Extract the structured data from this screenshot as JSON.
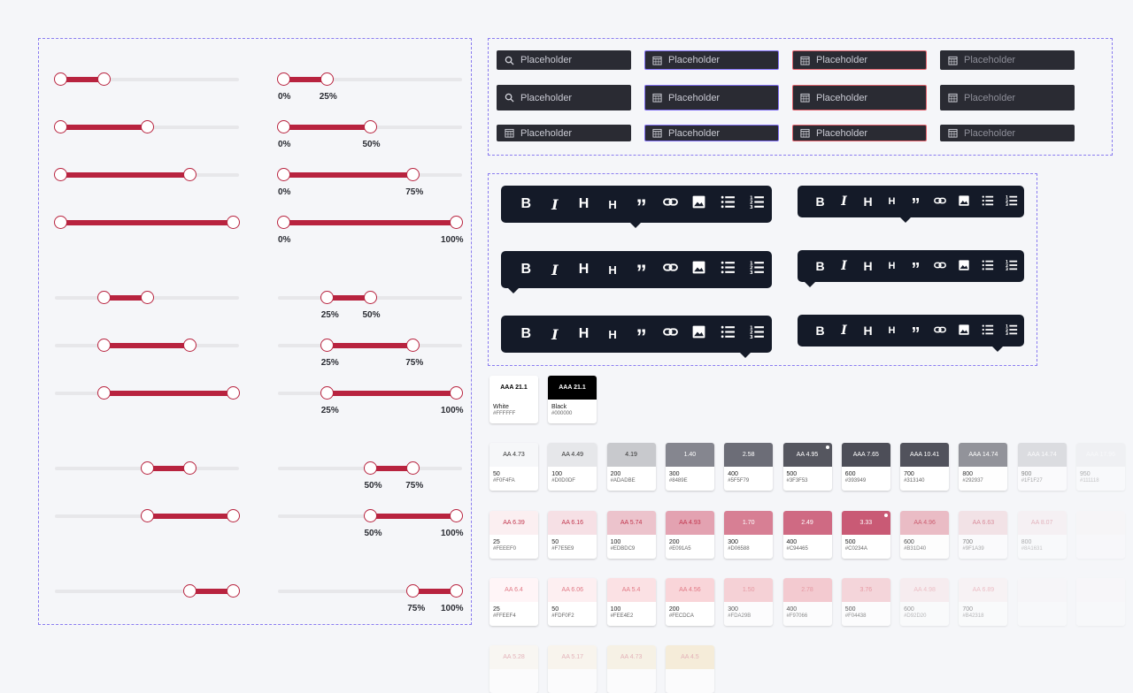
{
  "sliders": {
    "left_rows": [
      {
        "low": 0,
        "high": 25
      },
      {
        "low": 0,
        "high": 50
      },
      {
        "low": 0,
        "high": 75
      },
      {
        "low": 0,
        "high": 100
      },
      {
        "low": 25,
        "high": 50
      },
      {
        "low": 25,
        "high": 75
      },
      {
        "low": 25,
        "high": 100
      },
      {
        "low": 50,
        "high": 75
      },
      {
        "low": 50,
        "high": 100
      },
      {
        "low": 75,
        "high": 100
      }
    ],
    "right_rows": [
      {
        "low": 0,
        "high": 25,
        "low_label": "0%",
        "high_label": "25%"
      },
      {
        "low": 0,
        "high": 50,
        "low_label": "0%",
        "high_label": "50%"
      },
      {
        "low": 0,
        "high": 75,
        "low_label": "0%",
        "high_label": "75%"
      },
      {
        "low": 0,
        "high": 100,
        "low_label": "0%",
        "high_label": "100%"
      },
      {
        "low": 25,
        "high": 50,
        "low_label": "25%",
        "high_label": "50%"
      },
      {
        "low": 25,
        "high": 75,
        "low_label": "25%",
        "high_label": "75%"
      },
      {
        "low": 25,
        "high": 100,
        "low_label": "25%",
        "high_label": "100%"
      },
      {
        "low": 50,
        "high": 75,
        "low_label": "50%",
        "high_label": "75%"
      },
      {
        "low": 50,
        "high": 100,
        "low_label": "50%",
        "high_label": "100%"
      },
      {
        "low": 75,
        "high": 100,
        "low_label": "75%",
        "high_label": "100%"
      }
    ],
    "accent_color": "#b8233f"
  },
  "inputs": {
    "placeholder": "Placeholder",
    "columns": [
      {
        "state": "default",
        "icon": "search-icon"
      },
      {
        "state": "focus",
        "icon": "calendar-icon"
      },
      {
        "state": "error",
        "icon": "calendar-icon"
      },
      {
        "state": "disabled",
        "icon": "calendar-icon"
      }
    ],
    "focus_color": "#7e6cf2",
    "error_color": "#e0606a"
  },
  "toolbar": {
    "buttons": [
      {
        "glyph": "B",
        "icon": "bold-icon"
      },
      {
        "glyph": "I",
        "icon": "italic-icon"
      },
      {
        "glyph": "H",
        "icon": "heading-1-icon"
      },
      {
        "glyph": "H",
        "icon": "heading-2-icon"
      },
      {
        "glyph": "”",
        "icon": "quote-icon"
      },
      {
        "glyph": "",
        "icon": "link-icon"
      },
      {
        "glyph": "",
        "icon": "image-icon"
      },
      {
        "glyph": "",
        "icon": "bullet-list-icon"
      },
      {
        "glyph": "",
        "icon": "numbered-list-icon"
      }
    ],
    "background": "#141a28"
  },
  "basic_swatches": [
    {
      "ratio": "AAA 21.1",
      "name": "White",
      "hex": "#FFFFFF",
      "bg": "#ffffff",
      "fg": "#000000"
    },
    {
      "ratio": "AAA 21.1",
      "name": "Black",
      "hex": "#000000",
      "bg": "#000000",
      "fg": "#ffffff"
    }
  ],
  "gray_swatches": [
    {
      "ratio": "AA 4.73",
      "name": "50",
      "hex": "#F0F4FA",
      "bg": "#f6f7f9"
    },
    {
      "ratio": "AA 4.49",
      "name": "100",
      "hex": "#D0D0DF",
      "bg": "#e6e7ea"
    },
    {
      "ratio": "4.19",
      "name": "200",
      "hex": "#ADADBE",
      "bg": "#c8c9cd"
    },
    {
      "ratio": "1.40",
      "name": "300",
      "hex": "#8489E",
      "bg": "#85868f"
    },
    {
      "ratio": "2.58",
      "name": "400",
      "hex": "#5F5F79",
      "bg": "#6c6d77"
    },
    {
      "ratio": "AA 4.95",
      "name": "500",
      "hex": "#3F3F53",
      "bg": "#55565f"
    },
    {
      "ratio": "AAA 7.65",
      "name": "600",
      "hex": "#393949",
      "bg": "#4d4e58"
    },
    {
      "ratio": "AAA 10.41",
      "name": "700",
      "hex": "#313140",
      "bg": "#51525c"
    },
    {
      "ratio": "AAA 14.74",
      "name": "800",
      "hex": "#292937",
      "bg": "#888990"
    },
    {
      "ratio": "AAA 14.74",
      "name": "900",
      "hex": "#1F1F27",
      "bg": "#c7c8cc"
    },
    {
      "ratio": "AAA 17.96",
      "name": "950",
      "hex": "#111118",
      "bg": "#e4e5e8"
    }
  ],
  "red_swatches": [
    {
      "ratio": "AA 6.39",
      "name": "25",
      "hex": "#FEEEF0",
      "bg": "#fbeff1"
    },
    {
      "ratio": "AA 6.16",
      "name": "50",
      "hex": "#F7E5E9",
      "bg": "#f6e0e5"
    },
    {
      "ratio": "AA 5.74",
      "name": "100",
      "hex": "#EDBDC9",
      "bg": "#ecc3cc"
    },
    {
      "ratio": "AA 4.93",
      "name": "200",
      "hex": "#E091A5",
      "bg": "#e3a2b1"
    },
    {
      "ratio": "1.70",
      "name": "300",
      "hex": "#D06588",
      "bg": "#d77f94"
    },
    {
      "ratio": "2.49",
      "name": "400",
      "hex": "#C94465",
      "bg": "#cf6a83"
    },
    {
      "ratio": "3.33",
      "name": "500",
      "hex": "#C0234A",
      "bg": "#c95a75"
    },
    {
      "ratio": "AA 4.96",
      "name": "600",
      "hex": "#B31D40",
      "bg": "#e8aeb9"
    },
    {
      "ratio": "AA 6.63",
      "name": "700",
      "hex": "#9F1A39",
      "bg": "#f1d2d8"
    },
    {
      "ratio": "AA 8.07",
      "name": "800",
      "hex": "#8A1631",
      "bg": "#f7e6e9"
    },
    {
      "ratio": "",
      "name": "",
      "hex": "",
      "bg": "#fbf2f3"
    }
  ],
  "pink_swatches": [
    {
      "ratio": "AA 6.4",
      "name": "25",
      "hex": "#FFEEF4",
      "bg": "#fff5f7"
    },
    {
      "ratio": "AA 6.06",
      "name": "50",
      "hex": "#FDF0F2",
      "bg": "#fdeff1"
    },
    {
      "ratio": "AA 5.4",
      "name": "100",
      "hex": "#FEE4E2",
      "bg": "#fbe1e4"
    },
    {
      "ratio": "AA 4.56",
      "name": "200",
      "hex": "#FECDCA",
      "bg": "#f9d5d9"
    },
    {
      "ratio": "1.50",
      "name": "300",
      "hex": "#FDA29B",
      "bg": "#f6c5cb"
    },
    {
      "ratio": "2.78",
      "name": "400",
      "hex": "#F97066",
      "bg": "#f3bcc3"
    },
    {
      "ratio": "3.76",
      "name": "500",
      "hex": "#F04438",
      "bg": "#f4cad0"
    },
    {
      "ratio": "AA 4.98",
      "name": "600",
      "hex": "#D92D20",
      "bg": "#f8e2e5"
    },
    {
      "ratio": "AA 6.89",
      "name": "700",
      "hex": "#B42318",
      "bg": "#fbeef0"
    },
    {
      "ratio": "",
      "name": "",
      "hex": "",
      "bg": "#fcf5f6"
    },
    {
      "ratio": "",
      "name": "",
      "hex": "",
      "bg": "#fdf9f9"
    }
  ],
  "yellow_swatches": [
    {
      "ratio": "AA 5.28",
      "bg": "#fbf6ee"
    },
    {
      "ratio": "AA 5.17",
      "bg": "#faf3e6"
    },
    {
      "ratio": "AA 4.73",
      "bg": "#f8eed8"
    },
    {
      "ratio": "AA 4.5",
      "bg": "#f5e6c4"
    }
  ]
}
